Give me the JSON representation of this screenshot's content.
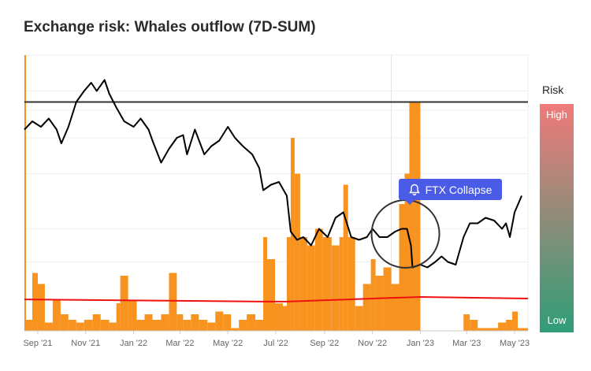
{
  "chart_data": {
    "type": "bar+line",
    "title": "Exchange risk: Whales outflow (7D-SUM)",
    "x_range": [
      "2021-08-15",
      "2023-05-18"
    ],
    "y_range": [
      0,
      100
    ],
    "x_ticks": [
      "Sep '21",
      "Nov '21",
      "Jan '22",
      "Mar '22",
      "May '22",
      "Jul '22",
      "Sep '22",
      "Nov '22",
      "Jan '23",
      "Mar '23",
      "May '23"
    ],
    "x_tick_dates": [
      "2021-09-01",
      "2021-11-01",
      "2022-01-01",
      "2022-03-01",
      "2022-05-01",
      "2022-07-01",
      "2022-09-01",
      "2022-11-01",
      "2023-01-01",
      "2023-03-01",
      "2023-05-01"
    ],
    "grid": true,
    "colors": {
      "bars": "#f7931e",
      "line": "#000000",
      "threshold": "#333333",
      "average": "#ee1111",
      "annotation": "#4a5ce6"
    },
    "line": [
      [
        "2021-08-15",
        73
      ],
      [
        "2021-08-25",
        76
      ],
      [
        "2021-09-05",
        74
      ],
      [
        "2021-09-15",
        77
      ],
      [
        "2021-09-25",
        73
      ],
      [
        "2021-10-01",
        68
      ],
      [
        "2021-10-10",
        74
      ],
      [
        "2021-10-20",
        83
      ],
      [
        "2021-10-30",
        87
      ],
      [
        "2021-11-08",
        90
      ],
      [
        "2021-11-15",
        87
      ],
      [
        "2021-11-25",
        91
      ],
      [
        "2021-12-01",
        86
      ],
      [
        "2021-12-10",
        81
      ],
      [
        "2021-12-20",
        76
      ],
      [
        "2022-01-01",
        74
      ],
      [
        "2022-01-10",
        77
      ],
      [
        "2022-01-20",
        73
      ],
      [
        "2022-01-25",
        69
      ],
      [
        "2022-02-05",
        61
      ],
      [
        "2022-02-15",
        66
      ],
      [
        "2022-02-25",
        70
      ],
      [
        "2022-03-05",
        71
      ],
      [
        "2022-03-10",
        64
      ],
      [
        "2022-03-20",
        73
      ],
      [
        "2022-04-01",
        64
      ],
      [
        "2022-04-10",
        67
      ],
      [
        "2022-04-20",
        69
      ],
      [
        "2022-05-01",
        74
      ],
      [
        "2022-05-10",
        70
      ],
      [
        "2022-05-20",
        67
      ],
      [
        "2022-06-01",
        64
      ],
      [
        "2022-06-10",
        59
      ],
      [
        "2022-06-15",
        51
      ],
      [
        "2022-06-25",
        53
      ],
      [
        "2022-07-05",
        54
      ],
      [
        "2022-07-15",
        49
      ],
      [
        "2022-07-20",
        36
      ],
      [
        "2022-07-28",
        33
      ],
      [
        "2022-08-05",
        34
      ],
      [
        "2022-08-15",
        31
      ],
      [
        "2022-08-25",
        37
      ],
      [
        "2022-09-05",
        34
      ],
      [
        "2022-09-15",
        41
      ],
      [
        "2022-09-25",
        43
      ],
      [
        "2022-10-05",
        34
      ],
      [
        "2022-10-15",
        33
      ],
      [
        "2022-10-25",
        34
      ],
      [
        "2022-11-01",
        37
      ],
      [
        "2022-11-10",
        34
      ],
      [
        "2022-11-20",
        34
      ],
      [
        "2022-11-30",
        36
      ],
      [
        "2022-12-08",
        37
      ],
      [
        "2022-12-15",
        37
      ],
      [
        "2022-12-20",
        31
      ],
      [
        "2022-12-22",
        23
      ],
      [
        "2023-01-01",
        24
      ],
      [
        "2023-01-10",
        23
      ],
      [
        "2023-01-20",
        25
      ],
      [
        "2023-01-28",
        27
      ],
      [
        "2023-02-05",
        25
      ],
      [
        "2023-02-15",
        24
      ],
      [
        "2023-02-25",
        34
      ],
      [
        "2023-03-05",
        39
      ],
      [
        "2023-03-15",
        39
      ],
      [
        "2023-03-25",
        41
      ],
      [
        "2023-04-05",
        40
      ],
      [
        "2023-04-15",
        37
      ],
      [
        "2023-04-20",
        39
      ],
      [
        "2023-04-25",
        34
      ],
      [
        "2023-05-01",
        43
      ],
      [
        "2023-05-10",
        49
      ]
    ],
    "bars": [
      [
        "2021-08-15",
        4
      ],
      [
        "2021-08-25",
        21
      ],
      [
        "2021-09-01",
        17
      ],
      [
        "2021-09-10",
        3
      ],
      [
        "2021-09-20",
        11
      ],
      [
        "2021-09-30",
        6
      ],
      [
        "2021-10-10",
        4
      ],
      [
        "2021-10-20",
        3
      ],
      [
        "2021-10-30",
        4
      ],
      [
        "2021-11-10",
        6
      ],
      [
        "2021-11-20",
        4
      ],
      [
        "2021-12-01",
        3
      ],
      [
        "2021-12-10",
        10
      ],
      [
        "2021-12-15",
        20
      ],
      [
        "2021-12-25",
        11
      ],
      [
        "2022-01-05",
        4
      ],
      [
        "2022-01-15",
        6
      ],
      [
        "2022-01-25",
        4
      ],
      [
        "2022-02-05",
        6
      ],
      [
        "2022-02-15",
        21
      ],
      [
        "2022-02-25",
        6
      ],
      [
        "2022-03-05",
        4
      ],
      [
        "2022-03-15",
        6
      ],
      [
        "2022-03-25",
        4
      ],
      [
        "2022-04-05",
        3
      ],
      [
        "2022-04-15",
        7
      ],
      [
        "2022-04-25",
        6
      ],
      [
        "2022-05-05",
        1
      ],
      [
        "2022-05-15",
        4
      ],
      [
        "2022-05-25",
        6
      ],
      [
        "2022-06-05",
        4
      ],
      [
        "2022-06-15",
        34
      ],
      [
        "2022-06-20",
        26
      ],
      [
        "2022-06-30",
        10
      ],
      [
        "2022-07-10",
        9
      ],
      [
        "2022-07-15",
        34
      ],
      [
        "2022-07-20",
        70
      ],
      [
        "2022-07-25",
        57
      ],
      [
        "2022-08-01",
        34
      ],
      [
        "2022-08-10",
        31
      ],
      [
        "2022-08-20",
        37
      ],
      [
        "2022-08-30",
        34
      ],
      [
        "2022-09-10",
        31
      ],
      [
        "2022-09-20",
        34
      ],
      [
        "2022-09-25",
        53
      ],
      [
        "2022-10-01",
        34
      ],
      [
        "2022-10-10",
        9
      ],
      [
        "2022-10-20",
        17
      ],
      [
        "2022-10-30",
        26
      ],
      [
        "2022-11-05",
        20
      ],
      [
        "2022-11-15",
        23
      ],
      [
        "2022-11-25",
        17
      ],
      [
        "2022-12-05",
        46
      ],
      [
        "2022-12-12",
        57
      ],
      [
        "2022-12-18",
        83
      ],
      [
        "2022-12-25",
        83
      ],
      [
        "2023-01-01",
        0
      ],
      [
        "2023-02-25",
        6
      ],
      [
        "2023-03-05",
        4
      ],
      [
        "2023-03-15",
        1
      ],
      [
        "2023-04-01",
        1
      ],
      [
        "2023-04-10",
        3
      ],
      [
        "2023-04-20",
        4
      ],
      [
        "2023-04-28",
        7
      ],
      [
        "2023-05-05",
        1
      ],
      [
        "2023-05-15",
        1
      ]
    ],
    "threshold": 83,
    "average": [
      [
        "2021-08-15",
        11.4
      ],
      [
        "2022-06-15",
        10.6
      ],
      [
        "2022-07-15",
        10.6
      ],
      [
        "2023-01-01",
        12.3
      ],
      [
        "2023-05-18",
        11.7
      ]
    ],
    "annotation": {
      "label": "FTX Collapse",
      "date": "2022-11-25",
      "icon": "bell-icon"
    },
    "risk_scale": {
      "label": "Risk",
      "high": "High",
      "low": "Low",
      "high_color": "#f07a7a",
      "low_color": "#2e9e78"
    }
  }
}
